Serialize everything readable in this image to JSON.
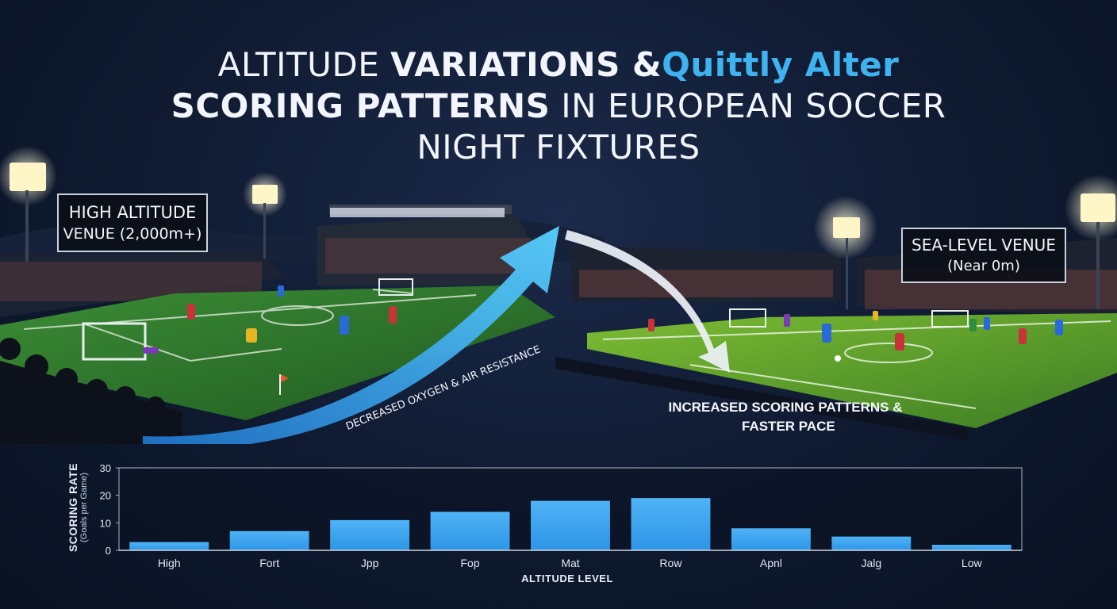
{
  "title": {
    "line1_regular": "ALTITUDE ",
    "line1_bold": "VARIATIONS &",
    "line1_accent": "Quittly Alter",
    "line2_bold": "SCORING PATTERNS",
    "line2_regular": " IN EUROPEAN SOCCER",
    "line3": "NIGHT FIXTURES"
  },
  "scene": {
    "high_venue": {
      "line1": "HIGH ALTITUDE",
      "line2": "VENUE (2,000m+)"
    },
    "sea_venue": {
      "line1": "SEA-LEVEL VENUE",
      "line2": "(Near 0m)"
    },
    "arrow_caption": "DECREASED OXYGEN & AIR RESISTANCE",
    "right_caption": {
      "line1": "INCREASED SCORING PATTERNS &",
      "line2": "FASTER PACE"
    },
    "colors": {
      "arrow": "#3fb8f5",
      "pitch_left": "#2f7d2c",
      "pitch_right": "#5aa32b",
      "floodlight": "#fff6c8"
    }
  },
  "chart_data": {
    "type": "bar",
    "categories": [
      "High",
      "Fort",
      "Jpp",
      "Fop",
      "Mat",
      "Row",
      "Apnl",
      "Jalg",
      "Low"
    ],
    "values": [
      3,
      7,
      11,
      14,
      18,
      19,
      8,
      5,
      2
    ],
    "ylabel": "SCORING RATE",
    "ylabel_sub": "(Goals per Game)",
    "xlabel": "ALTITUDE LEVEL",
    "ylim": [
      0,
      30
    ],
    "yticks": [
      0,
      10,
      20,
      30
    ],
    "bar_color": "#2e95e6",
    "bar_color_top": "#4fb3f6"
  }
}
